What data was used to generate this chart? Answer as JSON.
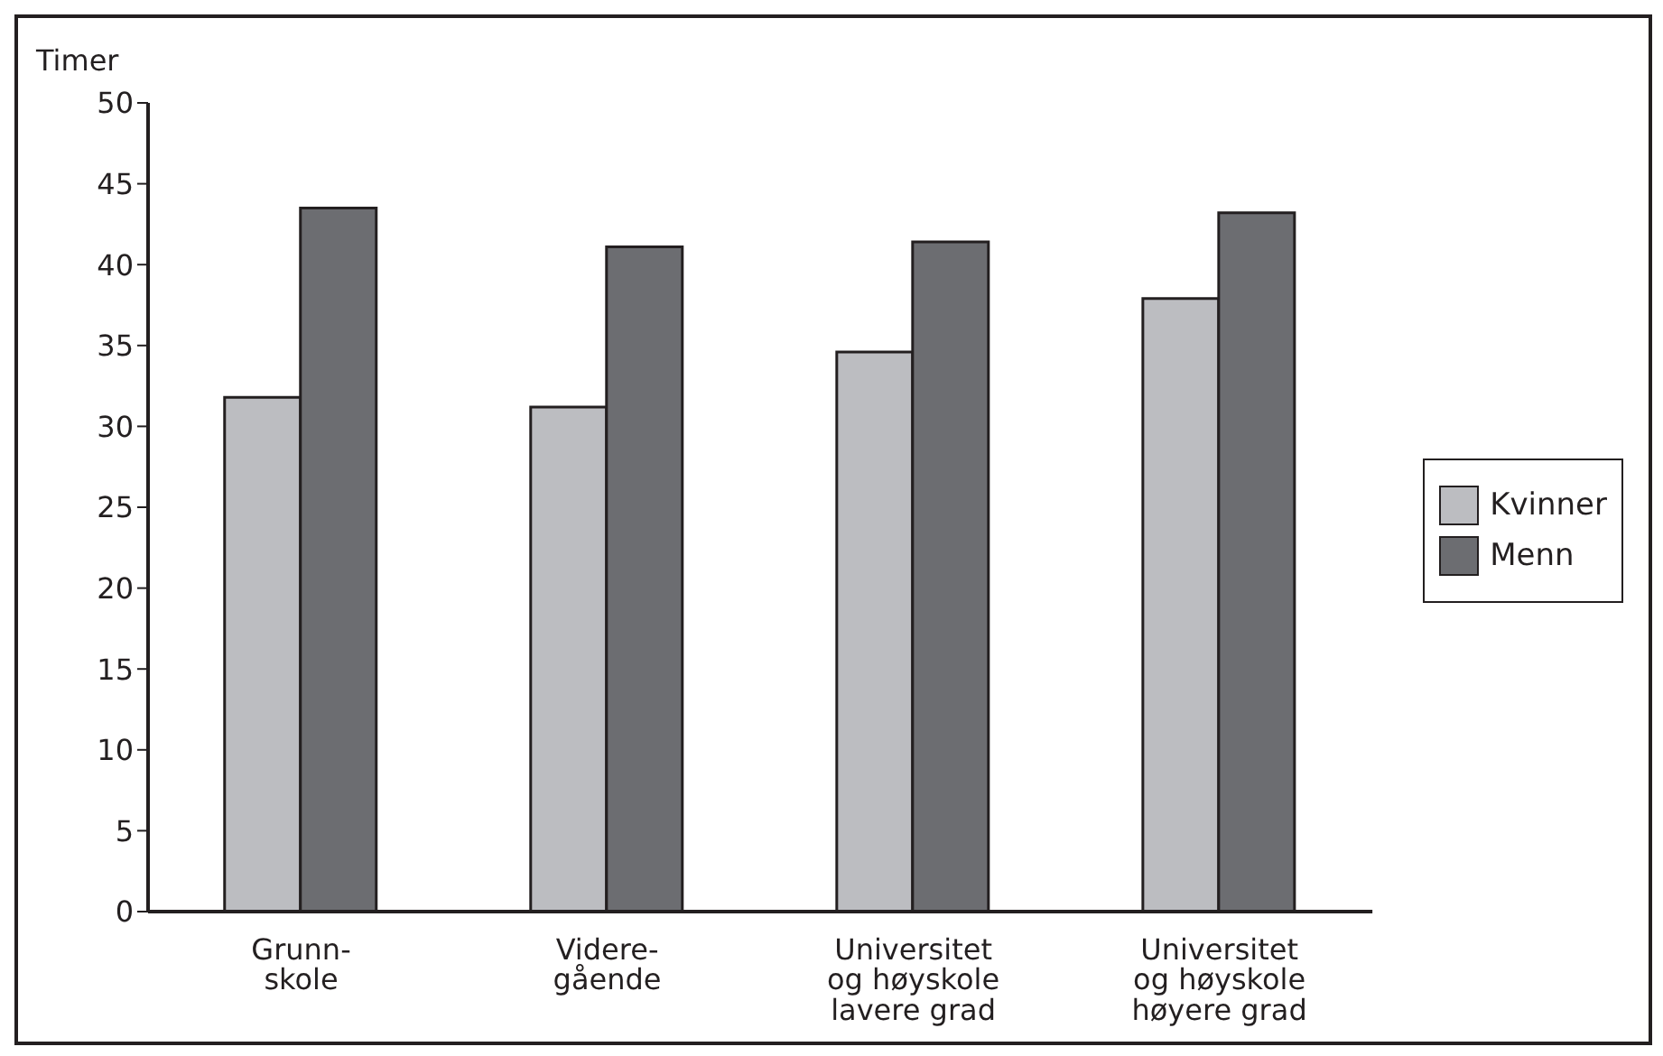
{
  "chart_data": {
    "type": "bar",
    "ylabel": "Timer",
    "categories": [
      "Grunn-\nskole",
      "Videre-\ngående",
      "Universitet\nog høyskole\nlavere grad",
      "Universitet\nog høyskole\nhøyere grad"
    ],
    "series": [
      {
        "name": "Kvinner",
        "color": "#bcbdc1",
        "values": [
          31.8,
          31.2,
          34.6,
          37.9
        ]
      },
      {
        "name": "Menn",
        "color": "#6c6d71",
        "values": [
          43.5,
          41.1,
          41.4,
          43.2
        ]
      }
    ],
    "ylim": [
      0,
      50
    ],
    "yticks": [
      0,
      5,
      10,
      15,
      20,
      25,
      30,
      35,
      40,
      45,
      50
    ],
    "grid": false,
    "legend": "right"
  }
}
